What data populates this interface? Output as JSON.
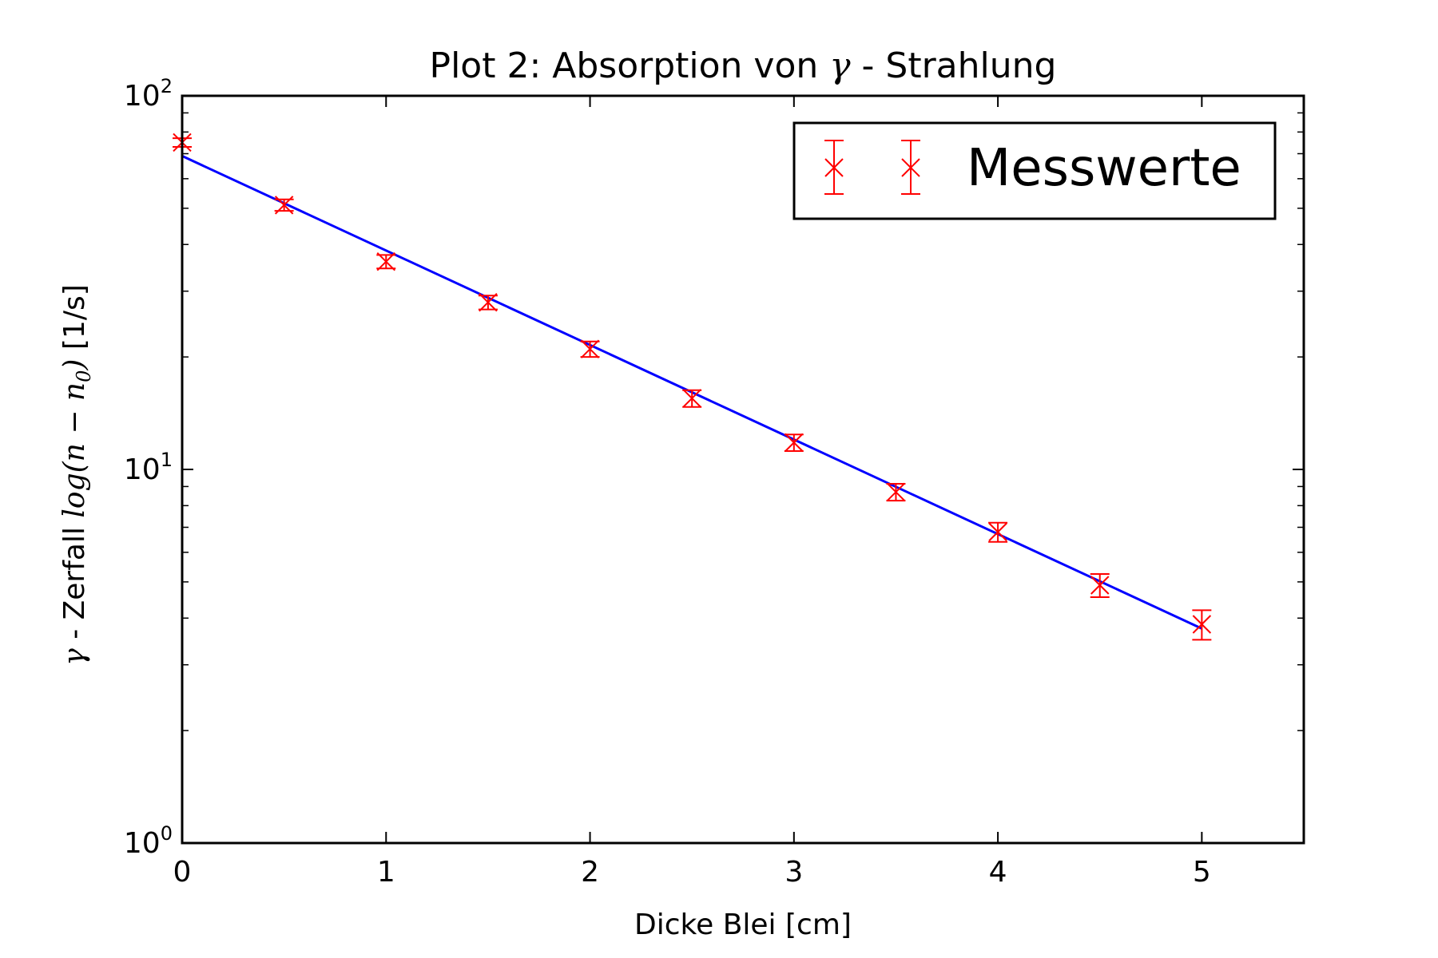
{
  "chart_data": {
    "type": "scatter",
    "title_prefix": "Plot 2: Absorption von ",
    "title_symbol": "γ",
    "title_suffix": " - Strahlung",
    "xlabel": "Dicke Blei [cm]",
    "ylabel_symbol": "γ",
    "ylabel_text": " - Zerfall ",
    "ylabel_math": "log(n − n",
    "ylabel_math_sub": "0",
    "ylabel_math_close": ")",
    "ylabel_unit": " [1/s]",
    "x_scale": "linear",
    "y_scale": "log",
    "xlim": [
      0,
      5.5
    ],
    "ylim": [
      1,
      100
    ],
    "x_ticks": [
      "0",
      "1",
      "2",
      "3",
      "4",
      "5"
    ],
    "x_tick_values": [
      0,
      1,
      2,
      3,
      4,
      5
    ],
    "y_tick_base": "10",
    "y_ticks": [
      {
        "value": 1,
        "exp": "0"
      },
      {
        "value": 10,
        "exp": "1"
      },
      {
        "value": 100,
        "exp": "2"
      }
    ],
    "legend_position": "top-right",
    "legend_label": "Messwerte",
    "series": [
      {
        "name": "Messwerte",
        "kind": "errorbar",
        "color": "#ff0000",
        "marker": "x",
        "x": [
          0,
          0.5,
          1,
          1.5,
          2,
          2.5,
          3,
          3.5,
          4,
          4.5,
          5
        ],
        "y": [
          75,
          51,
          36,
          28,
          21,
          15.5,
          11.8,
          8.7,
          6.8,
          4.9,
          3.85
        ],
        "yerr": [
          2.0,
          1.8,
          1.5,
          1.2,
          1.0,
          0.8,
          0.6,
          0.45,
          0.4,
          0.35,
          0.35
        ]
      },
      {
        "kind": "fit-line",
        "color": "#0000ff",
        "x": [
          0,
          5
        ],
        "y": [
          69,
          3.75
        ]
      }
    ]
  }
}
